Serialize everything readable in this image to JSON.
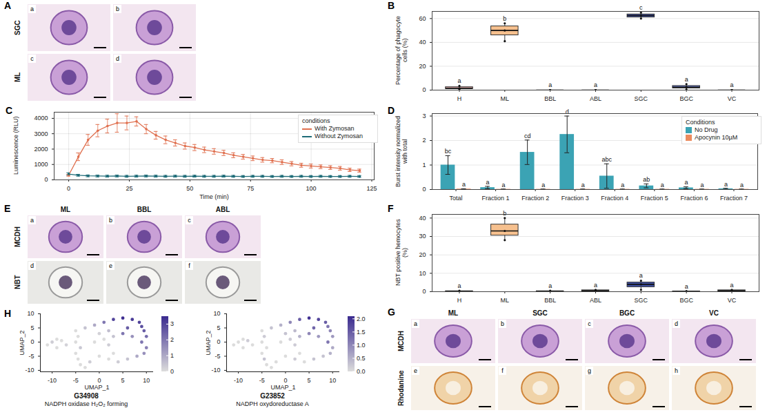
{
  "chart_data": [
    {
      "type": "box",
      "panel": "B",
      "ylabel": "Percentage of phagocyte cells (%)",
      "categories": [
        "H",
        "ML",
        "BBL",
        "ABL",
        "SGC",
        "BGC",
        "VC"
      ],
      "ylim": [
        0,
        66
      ],
      "yticks": [
        0,
        20,
        40,
        60
      ],
      "grid": true,
      "boxes": [
        {
          "min": 0.5,
          "q1": 1,
          "median": 1.5,
          "q3": 2.5,
          "max": 3.5,
          "points": [
            0.5,
            1.5,
            3.5
          ],
          "color": "#f2b8b8",
          "letter": "a"
        },
        {
          "min": 41,
          "q1": 46,
          "median": 50,
          "q3": 53.5,
          "max": 56,
          "points": [
            41,
            50,
            56
          ],
          "color": "#f6c08e",
          "letter": "b"
        },
        {
          "min": 0,
          "q1": 0,
          "median": 0,
          "q3": 0,
          "max": 0,
          "points": [
            0,
            0,
            0
          ],
          "color": "#d9d9d9",
          "letter": "a"
        },
        {
          "min": 0,
          "q1": 0,
          "median": 0,
          "q3": 0,
          "max": 0,
          "points": [
            0,
            0,
            0
          ],
          "color": "#d9d9d9",
          "letter": "a"
        },
        {
          "min": 60,
          "q1": 61,
          "median": 62.5,
          "q3": 63.5,
          "max": 65,
          "points": [
            60,
            62.5,
            65
          ],
          "color": "#3f4fa3",
          "letter": "c"
        },
        {
          "min": 0.5,
          "q1": 1.5,
          "median": 2.5,
          "q3": 3.5,
          "max": 5,
          "points": [
            0.5,
            2.5,
            5
          ],
          "color": "#6b7bc9",
          "letter": "a"
        },
        {
          "min": 0,
          "q1": 0,
          "median": 0,
          "q3": 0,
          "max": 0,
          "points": [
            0,
            0,
            0
          ],
          "color": "#d9d9d9",
          "letter": "a"
        }
      ]
    },
    {
      "type": "line",
      "panel": "C",
      "xlabel": "Time (min)",
      "ylabel": "Luminescence (RLU)",
      "legend_title": "conditions",
      "legend": "top-right",
      "grid": true,
      "marker": "circle",
      "xlim": [
        -6,
        126
      ],
      "xticks": [
        0,
        25,
        50,
        75,
        100,
        125
      ],
      "ylim": [
        0,
        4400
      ],
      "yticks": [
        0,
        1000,
        2000,
        3000,
        4000
      ],
      "x": [
        0,
        4,
        8,
        12,
        16,
        20,
        24,
        28,
        32,
        36,
        40,
        44,
        48,
        52,
        56,
        60,
        64,
        68,
        72,
        76,
        80,
        84,
        88,
        92,
        96,
        100,
        104,
        108,
        112,
        116,
        120
      ],
      "series": [
        {
          "name": "With Zymosan",
          "color": "#e0704f",
          "values": [
            300,
            1500,
            2600,
            3200,
            3500,
            3700,
            3700,
            3800,
            3300,
            2900,
            2600,
            2400,
            2200,
            2100,
            1950,
            1850,
            1750,
            1600,
            1500,
            1400,
            1300,
            1250,
            1150,
            1050,
            950,
            900,
            850,
            800,
            750,
            650,
            600
          ],
          "errors": [
            60,
            250,
            350,
            400,
            450,
            600,
            450,
            300,
            300,
            250,
            250,
            200,
            200,
            200,
            180,
            180,
            170,
            160,
            150,
            150,
            150,
            140,
            150,
            140,
            130,
            130,
            120,
            120,
            120,
            110,
            100
          ]
        },
        {
          "name": "Without Zymosan",
          "color": "#1d6b77",
          "values": [
            380,
            300,
            260,
            250,
            240,
            250,
            230,
            240,
            250,
            240,
            230,
            240,
            230,
            240,
            230,
            230,
            240,
            230,
            220,
            230,
            230,
            220,
            230,
            220,
            230,
            220,
            230,
            220,
            220,
            230,
            220
          ],
          "errors": [
            80,
            60,
            60,
            60,
            60,
            60,
            60,
            60,
            60,
            60,
            60,
            60,
            60,
            60,
            60,
            60,
            60,
            60,
            60,
            60,
            60,
            60,
            60,
            60,
            60,
            60,
            60,
            60,
            60,
            60,
            60
          ]
        }
      ]
    },
    {
      "type": "bar",
      "panel": "D",
      "ylabel": "Burst intensity normalized with total",
      "legend_title": "Conditions",
      "legend": "top-right",
      "grid": true,
      "categories": [
        "Total",
        "Fraction 1",
        "Fraction 2",
        "Fraction 3",
        "Fraction 4",
        "Fraction 5",
        "Fraction 6",
        "Fraction 7"
      ],
      "ylim": [
        0,
        3.1
      ],
      "yticks": [
        0,
        1,
        2,
        3
      ],
      "series": [
        {
          "name": "No Drug",
          "color": "#3ba3b4",
          "values": [
            1.0,
            0.08,
            1.52,
            2.25,
            0.55,
            0.15,
            0.07,
            0.03
          ],
          "errors": [
            0.38,
            0.05,
            0.5,
            0.75,
            0.5,
            0.08,
            0.04,
            0.02
          ],
          "letters": [
            "bc",
            "a",
            "cd",
            "d",
            "abc",
            "ab",
            "a",
            "a"
          ]
        },
        {
          "name": "Apocynin 10µM",
          "color": "#ec8b5e",
          "values": [
            0.02,
            0.01,
            0.01,
            0.01,
            0.01,
            0.01,
            0.01,
            0.01
          ],
          "errors": [
            0.01,
            0.01,
            0.01,
            0.01,
            0.01,
            0.01,
            0.01,
            0.01
          ],
          "letters": [
            "a",
            "a",
            "a",
            "a",
            "a",
            "a",
            "a",
            "a"
          ]
        }
      ]
    },
    {
      "type": "box",
      "panel": "F",
      "ylabel": "NBT positive hemocytes (%)",
      "categories": [
        "H",
        "ML",
        "BBL",
        "ABL",
        "SGC",
        "BGC",
        "VC"
      ],
      "ylim": [
        0,
        42
      ],
      "yticks": [
        0,
        10,
        20,
        30,
        40
      ],
      "grid": true,
      "boxes": [
        {
          "min": 0,
          "q1": 0,
          "median": 0,
          "q3": 0.3,
          "max": 0.5,
          "points": [
            0,
            0,
            0.5
          ],
          "color": "#f2b8b8",
          "letter": "a"
        },
        {
          "min": 28,
          "q1": 30.5,
          "median": 33,
          "q3": 36.5,
          "max": 40,
          "points": [
            28,
            33,
            40
          ],
          "color": "#f6c08e",
          "letter": "b"
        },
        {
          "min": 0,
          "q1": 0,
          "median": 0,
          "q3": 0.3,
          "max": 0.5,
          "points": [
            0,
            0,
            0.5
          ],
          "color": "#d9d9d9",
          "letter": "a"
        },
        {
          "min": 0,
          "q1": 0.2,
          "median": 0.5,
          "q3": 0.8,
          "max": 1,
          "points": [
            0,
            0.5,
            1
          ],
          "color": "#d9d9d9",
          "letter": "a"
        },
        {
          "min": 1,
          "q1": 2.5,
          "median": 4,
          "q3": 5,
          "max": 6,
          "points": [
            1,
            4,
            6
          ],
          "color": "#3f4fa3",
          "letter": "a"
        },
        {
          "min": 0,
          "q1": 0,
          "median": 0,
          "q3": 0.2,
          "max": 0.3,
          "points": [
            0,
            0,
            0.3
          ],
          "color": "#6b7bc9",
          "letter": "a"
        },
        {
          "min": 0,
          "q1": 0.2,
          "median": 0.5,
          "q3": 0.8,
          "max": 1,
          "points": [
            0,
            0.5,
            1
          ],
          "color": "#d9d9d9",
          "letter": "a"
        }
      ]
    },
    {
      "type": "scatter",
      "panel": "H",
      "title": "G34908",
      "subtitle": "NADPH oxidase H₂O₂ forming",
      "xlabel": "UMAP_1",
      "ylabel": "UMAP_2",
      "xlim": [
        -12.5,
        11.5
      ],
      "xticks": [
        -10,
        -5,
        0,
        5,
        10
      ],
      "ylim": [
        -10.5,
        10
      ],
      "yticks": [
        -10,
        -5,
        0,
        5,
        10
      ],
      "x": [
        -11,
        -10,
        -9,
        -8,
        -9,
        -7,
        -5,
        -4.5,
        -5,
        -4,
        -5,
        -4.5,
        -4,
        -3,
        -2,
        -3,
        -1,
        1,
        3,
        5,
        7,
        8.5,
        9,
        9.5,
        10,
        9,
        10,
        9.5,
        8,
        0,
        2,
        1,
        3,
        -1,
        2,
        0,
        2,
        4,
        6,
        3,
        5,
        6,
        7
      ],
      "y": [
        -1,
        0,
        -2,
        0.5,
        1,
        -1,
        4,
        2,
        0,
        -2,
        -4,
        -6,
        -8,
        -9,
        -7,
        5,
        6,
        7,
        8,
        8.5,
        8,
        7,
        5.5,
        4,
        2,
        0,
        -2,
        -4,
        -5,
        3,
        4,
        1,
        2,
        0,
        -1,
        -5,
        -6,
        -7,
        -6,
        -4,
        3,
        5,
        2
      ],
      "values": [
        0,
        0.3,
        0,
        0,
        0,
        0.2,
        0,
        0,
        0,
        0.4,
        0,
        0,
        0,
        0,
        0.3,
        0.5,
        1,
        2,
        3,
        3.4,
        3.2,
        3,
        2.8,
        2.5,
        2.2,
        2,
        1.8,
        1.5,
        1,
        0.2,
        0.6,
        0,
        0.5,
        0,
        0.3,
        0,
        0,
        0.3,
        0.5,
        0,
        2,
        2.5,
        1.5
      ],
      "colorbar": {
        "lim": [
          0,
          3.5
        ],
        "ticks": [
          0,
          1,
          2,
          3
        ]
      }
    },
    {
      "type": "scatter",
      "title": "G23852",
      "subtitle": "NADPH oxydoreductase A",
      "xlabel": "UMAP_1",
      "ylabel": "UMAP_2",
      "xlim": [
        -12.5,
        11.5
      ],
      "xticks": [
        -10,
        -5,
        0,
        5,
        10
      ],
      "ylim": [
        -10.5,
        10
      ],
      "yticks": [
        -10,
        -5,
        0,
        5,
        10
      ],
      "x": [
        -11,
        -10,
        -9,
        -8,
        -9,
        -7,
        -5,
        -4.5,
        -5,
        -4,
        -5,
        -4.5,
        -4,
        -3,
        -2,
        -3,
        -1,
        1,
        3,
        5,
        7,
        8.5,
        9,
        9.5,
        10,
        9,
        10,
        9.5,
        8,
        0,
        2,
        1,
        3,
        -1,
        2,
        0,
        2,
        4,
        6,
        3,
        5,
        6,
        7
      ],
      "y": [
        -1,
        0,
        -2,
        0.5,
        1,
        -1,
        4,
        2,
        0,
        -2,
        -4,
        -6,
        -8,
        -9,
        -7,
        5,
        6,
        7,
        8,
        8.5,
        8,
        7,
        5.5,
        4,
        2,
        0,
        -2,
        -4,
        -5,
        3,
        4,
        1,
        2,
        0,
        -1,
        -5,
        -6,
        -7,
        -6,
        -4,
        3,
        5,
        2
      ],
      "values": [
        0,
        0,
        0,
        0.2,
        0,
        0,
        0,
        0.2,
        0,
        0,
        0,
        0.3,
        0,
        0,
        0,
        0.3,
        0.5,
        1,
        1.5,
        2,
        1.8,
        1.5,
        1.2,
        1,
        0.8,
        1.2,
        0.6,
        0.5,
        0.3,
        0.3,
        0.4,
        0.2,
        0.5,
        0,
        0.2,
        0,
        0.2,
        0,
        0.3,
        0,
        1,
        1.4,
        0.8
      ],
      "colorbar": {
        "lim": [
          0,
          2.1
        ],
        "ticks": [
          {
            "value": 0,
            "label": "0.0"
          },
          0.5,
          {
            "value": 1,
            "label": "1.0"
          },
          1.5,
          {
            "value": 2,
            "label": "2.0"
          }
        ]
      }
    }
  ],
  "image_panels": [
    {
      "panel": "A",
      "rows": [
        "SGC",
        "ML"
      ],
      "subpanels": [
        "a",
        "b",
        "c",
        "d"
      ]
    },
    {
      "panel": "E",
      "columns": [
        "ML",
        "BBL",
        "ABL"
      ],
      "rows": [
        "MCDH",
        "NBT"
      ],
      "subpanels": [
        "a",
        "b",
        "c",
        "d",
        "e",
        "f"
      ]
    },
    {
      "panel": "G",
      "columns": [
        "ML",
        "SGC",
        "BGC",
        "VC"
      ],
      "rows": [
        "MCDH",
        "Rhodanine"
      ],
      "subpanels": [
        "a",
        "b",
        "c",
        "d",
        "e",
        "f",
        "g",
        "h"
      ]
    }
  ]
}
